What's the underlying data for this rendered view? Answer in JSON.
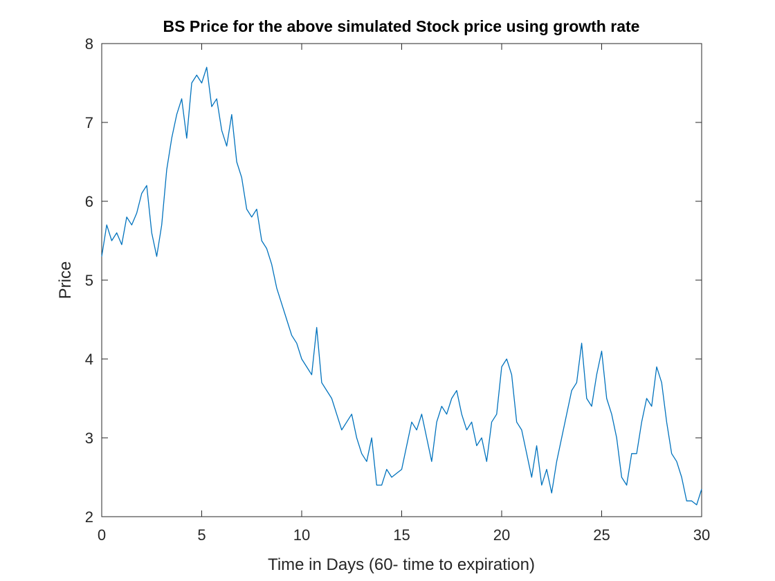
{
  "chart_data": {
    "type": "line",
    "title": "BS Price for the above simulated Stock price using growth rate",
    "x_label": "Time in Days (60- time to expiration)",
    "y_label": "Price",
    "color": "#0072bd",
    "xlim": [
      0,
      30
    ],
    "xticks": [
      0,
      5,
      10,
      15,
      20,
      25,
      30
    ],
    "ylim": [
      2,
      8
    ],
    "yticks": [
      2,
      3,
      4,
      5,
      6,
      7,
      8
    ],
    "x": [
      0,
      0.25,
      0.5,
      0.75,
      1,
      1.25,
      1.5,
      1.75,
      2,
      2.25,
      2.5,
      2.75,
      3,
      3.25,
      3.5,
      3.75,
      4,
      4.25,
      4.5,
      4.75,
      5,
      5.25,
      5.5,
      5.75,
      6,
      6.25,
      6.5,
      6.75,
      7,
      7.25,
      7.5,
      7.75,
      8,
      8.25,
      8.5,
      8.75,
      9,
      9.25,
      9.5,
      9.75,
      10,
      10.25,
      10.5,
      10.75,
      11,
      11.25,
      11.5,
      11.75,
      12,
      12.25,
      12.5,
      12.75,
      13,
      13.25,
      13.5,
      13.75,
      14,
      14.25,
      14.5,
      14.75,
      15,
      15.25,
      15.5,
      15.75,
      16,
      16.25,
      16.5,
      16.75,
      17,
      17.25,
      17.5,
      17.75,
      18,
      18.25,
      18.5,
      18.75,
      19,
      19.25,
      19.5,
      19.75,
      20,
      20.25,
      20.5,
      20.75,
      21,
      21.25,
      21.5,
      21.75,
      22,
      22.25,
      22.5,
      22.75,
      23,
      23.25,
      23.5,
      23.75,
      24,
      24.25,
      24.5,
      24.75,
      25,
      25.25,
      25.5,
      25.75,
      26,
      26.25,
      26.5,
      26.75,
      27,
      27.25,
      27.5,
      27.75,
      28,
      28.25,
      28.5,
      28.75,
      29,
      29.25,
      29.5,
      29.75,
      30
    ],
    "values": [
      5.3,
      5.7,
      5.5,
      5.6,
      5.45,
      5.8,
      5.7,
      5.85,
      6.1,
      6.2,
      5.6,
      5.3,
      5.7,
      6.4,
      6.8,
      7.1,
      7.3,
      6.8,
      7.5,
      7.6,
      7.5,
      7.7,
      7.2,
      7.3,
      6.9,
      6.7,
      7.1,
      6.5,
      6.3,
      5.9,
      5.8,
      5.9,
      5.5,
      5.4,
      5.2,
      4.9,
      4.7,
      4.5,
      4.3,
      4.2,
      4.0,
      3.9,
      3.8,
      4.4,
      3.7,
      3.6,
      3.5,
      3.3,
      3.1,
      3.2,
      3.3,
      3.0,
      2.8,
      2.7,
      3.0,
      2.4,
      2.4,
      2.6,
      2.5,
      2.55,
      2.6,
      2.9,
      3.2,
      3.1,
      3.3,
      3.0,
      2.7,
      3.2,
      3.4,
      3.3,
      3.5,
      3.6,
      3.3,
      3.1,
      3.2,
      2.9,
      3.0,
      2.7,
      3.2,
      3.3,
      3.9,
      4.0,
      3.8,
      3.2,
      3.1,
      2.8,
      2.5,
      2.9,
      2.4,
      2.6,
      2.3,
      2.7,
      3.0,
      3.3,
      3.6,
      3.7,
      4.2,
      3.5,
      3.4,
      3.8,
      4.1,
      3.5,
      3.3,
      3.0,
      2.5,
      2.4,
      2.8,
      2.8,
      3.2,
      3.5,
      3.4,
      3.9,
      3.7,
      3.2,
      2.8,
      2.7,
      2.5,
      2.2,
      2.2,
      2.15,
      2.35
    ]
  }
}
